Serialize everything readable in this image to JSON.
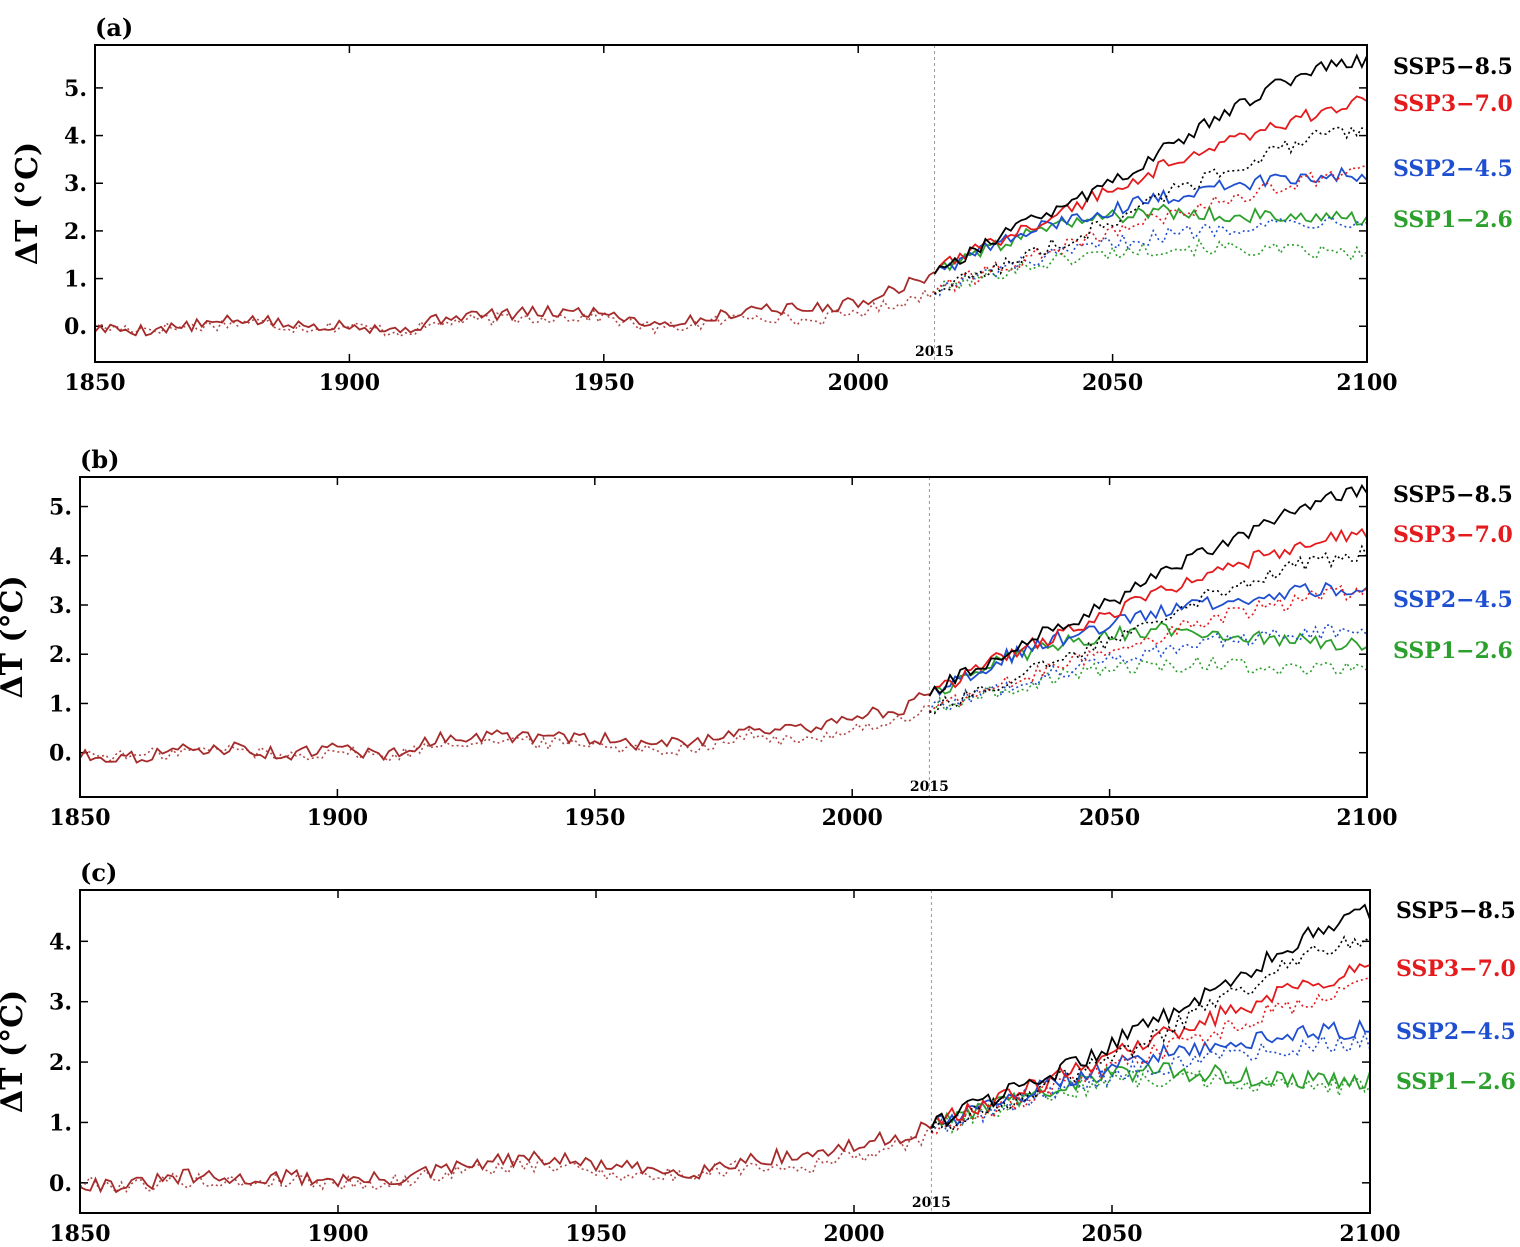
{
  "chart_data": [
    {
      "type": "line",
      "panel_label": "(a)",
      "ylabel": "ΔT (°C)",
      "xlim": [
        1850,
        2100
      ],
      "ylim": [
        -0.75,
        5.9
      ],
      "x_ticks": [
        "1850",
        "1900",
        "1950",
        "2000",
        "2050",
        "2100"
      ],
      "y_ticks": [
        "0.",
        "1.",
        "2.",
        "3.",
        "4.",
        "5."
      ],
      "marker": {
        "x": 2015,
        "label": "2015"
      },
      "historical": {
        "x": [
          1850,
          1860,
          1870,
          1880,
          1890,
          1900,
          1910,
          1920,
          1930,
          1940,
          1950,
          1960,
          1970,
          1980,
          1990,
          2000,
          2010,
          2015
        ],
        "solid": [
          -0.05,
          -0.08,
          0.02,
          0.15,
          0.0,
          0.05,
          -0.1,
          0.22,
          0.25,
          0.3,
          0.3,
          0.05,
          0.15,
          0.4,
          0.35,
          0.5,
          0.9,
          1.1
        ],
        "dotted": [
          -0.02,
          -0.05,
          0.0,
          0.1,
          -0.02,
          0.0,
          -0.12,
          0.1,
          0.15,
          0.2,
          0.2,
          -0.05,
          0.05,
          0.25,
          0.1,
          0.3,
          0.55,
          0.75
        ],
        "color": "#a52a2a"
      },
      "series": [
        {
          "name": "SSP5-8.5",
          "color": "#000000",
          "x": [
            2015,
            2030,
            2040,
            2050,
            2060,
            2070,
            2080,
            2090,
            2100
          ],
          "solid": [
            1.15,
            2.0,
            2.5,
            3.05,
            3.7,
            4.35,
            4.95,
            5.45,
            5.6
          ],
          "dotted": [
            0.75,
            1.35,
            1.75,
            2.2,
            2.75,
            3.2,
            3.6,
            3.95,
            4.15
          ]
        },
        {
          "name": "SSP3-7.0",
          "color": "#e41a1c",
          "x": [
            2015,
            2030,
            2040,
            2050,
            2060,
            2070,
            2080,
            2090,
            2100
          ],
          "solid": [
            1.15,
            1.95,
            2.4,
            2.9,
            3.35,
            3.8,
            4.15,
            4.45,
            4.75
          ],
          "dotted": [
            0.75,
            1.3,
            1.65,
            2.0,
            2.3,
            2.6,
            2.85,
            3.1,
            3.25
          ]
        },
        {
          "name": "SSP2-4.5",
          "color": "#1f4fd1",
          "x": [
            2015,
            2030,
            2040,
            2050,
            2060,
            2070,
            2080,
            2090,
            2100
          ],
          "solid": [
            1.15,
            1.85,
            2.2,
            2.45,
            2.7,
            2.9,
            3.05,
            3.15,
            3.2
          ],
          "dotted": [
            0.75,
            1.25,
            1.5,
            1.75,
            1.9,
            2.05,
            2.15,
            2.2,
            2.25
          ]
        },
        {
          "name": "SSP1-2.6",
          "color": "#2ca02c",
          "x": [
            2015,
            2030,
            2040,
            2050,
            2060,
            2070,
            2080,
            2090,
            2100
          ],
          "solid": [
            1.15,
            1.8,
            2.1,
            2.3,
            2.4,
            2.35,
            2.3,
            2.25,
            2.25
          ],
          "dotted": [
            0.75,
            1.2,
            1.4,
            1.55,
            1.65,
            1.65,
            1.6,
            1.55,
            1.5
          ]
        }
      ],
      "legend": [
        {
          "label": "SSP5−8.5",
          "color": "#000000"
        },
        {
          "label": "SSP3−7.0",
          "color": "#e41a1c"
        },
        {
          "label": "SSP2−4.5",
          "color": "#1f4fd1"
        },
        {
          "label": "SSP1−2.6",
          "color": "#2ca02c"
        }
      ]
    },
    {
      "type": "line",
      "panel_label": "(b)",
      "ylabel": "ΔT (°C)",
      "xlim": [
        1850,
        2100
      ],
      "ylim": [
        -0.9,
        5.6
      ],
      "x_ticks": [
        "1850",
        "1900",
        "1950",
        "2000",
        "2050",
        "2100"
      ],
      "y_ticks": [
        "0.",
        "1.",
        "2.",
        "3.",
        "4.",
        "5."
      ],
      "marker": {
        "x": 2015,
        "label": "2015"
      },
      "historical": {
        "x": [
          1850,
          1860,
          1870,
          1880,
          1890,
          1900,
          1910,
          1920,
          1930,
          1940,
          1950,
          1960,
          1970,
          1980,
          1990,
          2000,
          2010,
          2015
        ],
        "solid": [
          -0.05,
          -0.1,
          0.05,
          0.1,
          -0.05,
          0.1,
          -0.05,
          0.3,
          0.35,
          0.3,
          0.3,
          0.15,
          0.25,
          0.5,
          0.45,
          0.75,
          0.9,
          1.2
        ],
        "dotted": [
          -0.02,
          -0.08,
          0.03,
          0.08,
          -0.08,
          0.05,
          -0.1,
          0.2,
          0.25,
          0.2,
          0.2,
          0.05,
          0.12,
          0.35,
          0.2,
          0.5,
          0.65,
          0.9
        ],
        "color": "#a52a2a"
      },
      "series": [
        {
          "name": "SSP5-8.5",
          "color": "#000000",
          "x": [
            2015,
            2030,
            2040,
            2050,
            2060,
            2070,
            2080,
            2090,
            2100
          ],
          "solid": [
            1.2,
            2.05,
            2.55,
            3.05,
            3.6,
            4.15,
            4.65,
            5.1,
            5.3
          ],
          "dotted": [
            0.9,
            1.45,
            1.85,
            2.3,
            2.8,
            3.25,
            3.6,
            3.9,
            4.05
          ]
        },
        {
          "name": "SSP3-7.0",
          "color": "#e41a1c",
          "x": [
            2015,
            2030,
            2040,
            2050,
            2060,
            2070,
            2080,
            2090,
            2100
          ],
          "solid": [
            1.2,
            2.0,
            2.4,
            2.85,
            3.25,
            3.65,
            4.0,
            4.3,
            4.5
          ],
          "dotted": [
            0.9,
            1.4,
            1.75,
            2.1,
            2.4,
            2.7,
            2.95,
            3.15,
            3.3
          ]
        },
        {
          "name": "SSP2-4.5",
          "color": "#1f4fd1",
          "x": [
            2015,
            2030,
            2040,
            2050,
            2060,
            2070,
            2080,
            2090,
            2100
          ],
          "solid": [
            1.2,
            1.95,
            2.3,
            2.6,
            2.85,
            3.05,
            3.2,
            3.3,
            3.3
          ],
          "dotted": [
            0.9,
            1.35,
            1.65,
            1.9,
            2.1,
            2.25,
            2.35,
            2.45,
            2.5
          ]
        },
        {
          "name": "SSP1-2.6",
          "color": "#2ca02c",
          "x": [
            2015,
            2030,
            2040,
            2050,
            2060,
            2070,
            2080,
            2090,
            2100
          ],
          "solid": [
            1.2,
            1.9,
            2.2,
            2.4,
            2.5,
            2.45,
            2.35,
            2.25,
            2.2
          ],
          "dotted": [
            0.9,
            1.3,
            1.55,
            1.7,
            1.8,
            1.8,
            1.75,
            1.7,
            1.65
          ]
        }
      ],
      "legend": [
        {
          "label": "SSP5−8.5",
          "color": "#000000"
        },
        {
          "label": "SSP3−7.0",
          "color": "#e41a1c"
        },
        {
          "label": "SSP2−4.5",
          "color": "#1f4fd1"
        },
        {
          "label": "SSP1−2.6",
          "color": "#2ca02c"
        }
      ]
    },
    {
      "type": "line",
      "panel_label": "(c)",
      "ylabel": "ΔT (°C)",
      "xlim": [
        1850,
        2100
      ],
      "ylim": [
        -0.5,
        4.85
      ],
      "x_ticks": [
        "1850",
        "1900",
        "1950",
        "2000",
        "2050",
        "2100"
      ],
      "y_ticks": [
        "0.",
        "1.",
        "2.",
        "3.",
        "4."
      ],
      "marker": {
        "x": 2015,
        "label": "2015"
      },
      "historical": {
        "x": [
          1850,
          1860,
          1870,
          1880,
          1890,
          1900,
          1910,
          1920,
          1930,
          1940,
          1950,
          1960,
          1970,
          1980,
          1990,
          2000,
          2010,
          2015
        ],
        "solid": [
          0.0,
          -0.05,
          0.1,
          0.05,
          0.1,
          0.05,
          0.05,
          0.2,
          0.35,
          0.4,
          0.3,
          0.2,
          0.2,
          0.4,
          0.45,
          0.6,
          0.8,
          0.95
        ],
        "dotted": [
          0.0,
          -0.05,
          0.05,
          0.0,
          0.05,
          0.0,
          0.0,
          0.15,
          0.25,
          0.3,
          0.2,
          0.1,
          0.15,
          0.3,
          0.25,
          0.45,
          0.6,
          0.85
        ],
        "color": "#a52a2a"
      },
      "series": [
        {
          "name": "SSP5-8.5",
          "color": "#000000",
          "x": [
            2015,
            2030,
            2040,
            2050,
            2060,
            2070,
            2080,
            2090,
            2100
          ],
          "solid": [
            0.95,
            1.5,
            1.85,
            2.3,
            2.75,
            3.2,
            3.7,
            4.2,
            4.5
          ],
          "dotted": [
            0.9,
            1.35,
            1.7,
            2.1,
            2.5,
            2.95,
            3.4,
            3.85,
            4.1
          ]
        },
        {
          "name": "SSP3-7.0",
          "color": "#e41a1c",
          "x": [
            2015,
            2030,
            2040,
            2050,
            2060,
            2070,
            2080,
            2090,
            2100
          ],
          "solid": [
            0.95,
            1.45,
            1.75,
            2.1,
            2.45,
            2.75,
            3.05,
            3.35,
            3.55
          ],
          "dotted": [
            0.9,
            1.3,
            1.6,
            1.9,
            2.2,
            2.5,
            2.8,
            3.1,
            3.35
          ]
        },
        {
          "name": "SSP2-4.5",
          "color": "#1f4fd1",
          "x": [
            2015,
            2030,
            2040,
            2050,
            2060,
            2070,
            2080,
            2090,
            2100
          ],
          "solid": [
            0.95,
            1.4,
            1.7,
            1.95,
            2.15,
            2.3,
            2.4,
            2.5,
            2.55
          ],
          "dotted": [
            0.9,
            1.3,
            1.55,
            1.8,
            1.95,
            2.1,
            2.2,
            2.3,
            2.35
          ]
        },
        {
          "name": "SSP1-2.6",
          "color": "#2ca02c",
          "x": [
            2015,
            2030,
            2040,
            2050,
            2060,
            2070,
            2080,
            2090,
            2100
          ],
          "solid": [
            0.95,
            1.35,
            1.6,
            1.8,
            1.85,
            1.8,
            1.72,
            1.7,
            1.7
          ],
          "dotted": [
            0.9,
            1.25,
            1.5,
            1.7,
            1.75,
            1.7,
            1.65,
            1.6,
            1.6
          ]
        }
      ],
      "legend": [
        {
          "label": "SSP5−8.5",
          "color": "#000000"
        },
        {
          "label": "SSP3−7.0",
          "color": "#e41a1c"
        },
        {
          "label": "SSP2−4.5",
          "color": "#1f4fd1"
        },
        {
          "label": "SSP1−2.6",
          "color": "#2ca02c"
        }
      ]
    }
  ]
}
